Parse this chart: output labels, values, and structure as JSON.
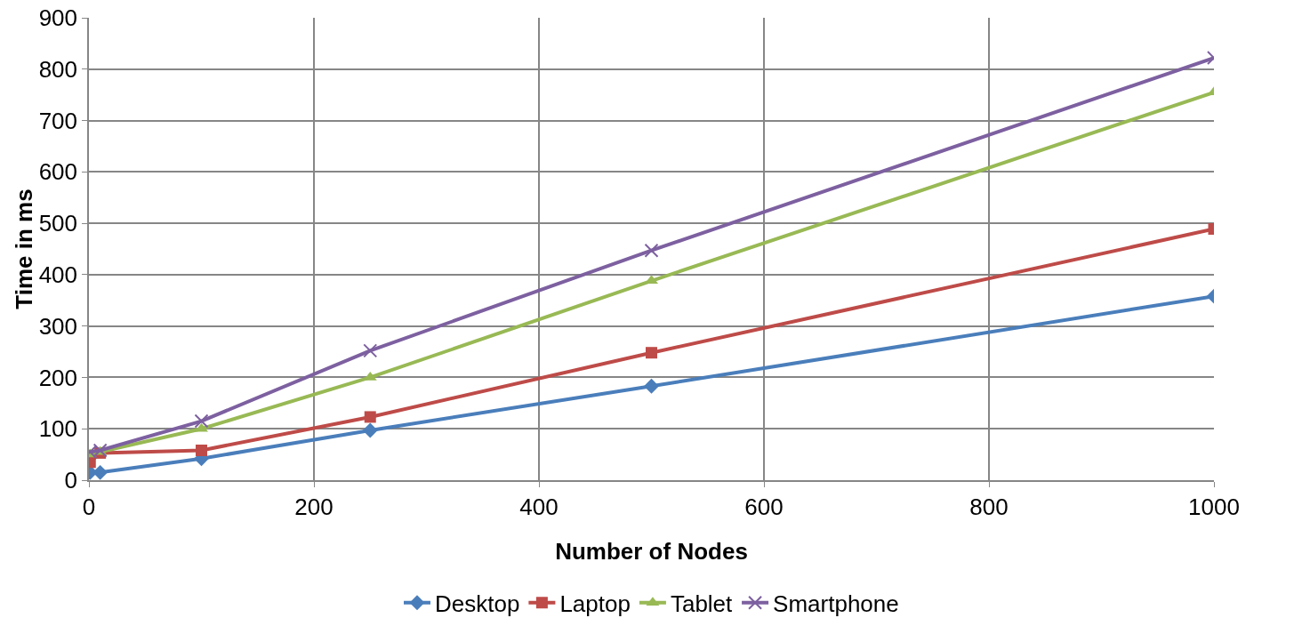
{
  "chart_data": {
    "type": "line",
    "xlabel": "Number of Nodes",
    "ylabel": "Time in ms",
    "x": [
      1,
      10,
      100,
      250,
      500,
      1000
    ],
    "series": [
      {
        "name": "Desktop",
        "color": "#4a7ebb",
        "marker": "diamond",
        "values": [
          15,
          15,
          42,
          97,
          183,
          358
        ]
      },
      {
        "name": "Laptop",
        "color": "#be4b48",
        "marker": "square",
        "values": [
          35,
          53,
          58,
          123,
          248,
          489
        ]
      },
      {
        "name": "Tablet",
        "color": "#98b954",
        "marker": "triangle",
        "values": [
          50,
          55,
          100,
          200,
          388,
          755
        ]
      },
      {
        "name": "Smartphone",
        "color": "#7d60a0",
        "marker": "cross",
        "values": [
          55,
          58,
          115,
          252,
          447,
          822
        ]
      }
    ],
    "xlim": [
      0,
      1000
    ],
    "xticks": [
      0,
      200,
      400,
      600,
      800,
      1000
    ],
    "ylim": [
      0,
      900
    ],
    "yticks": [
      0,
      100,
      200,
      300,
      400,
      500,
      600,
      700,
      800,
      900
    ],
    "grid": true,
    "legend": "bottom",
    "line_style": "solid"
  }
}
